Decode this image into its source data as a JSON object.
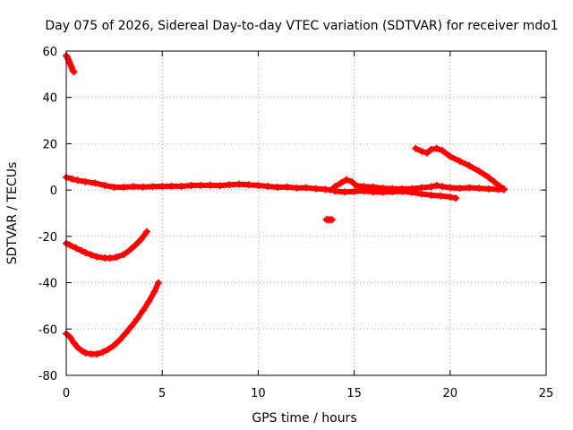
{
  "chart_data": {
    "type": "scatter",
    "title": "Day 075 of 2026, Sidereal Day-to-day VTEC variation (SDTVAR) for receiver mdo1",
    "xlabel": "GPS time / hours",
    "ylabel": "SDTVAR / TECUs",
    "xlim": [
      0,
      25
    ],
    "ylim": [
      -80,
      60
    ],
    "xticks": [
      0,
      5,
      10,
      15,
      20,
      25
    ],
    "yticks": [
      -80,
      -60,
      -40,
      -20,
      0,
      20,
      40,
      60
    ],
    "grid": true,
    "marker_color": "#ff0000",
    "series": [
      {
        "name": "steep-drop-start",
        "points": [
          [
            0.0,
            58
          ],
          [
            0.05,
            57.5
          ],
          [
            0.1,
            56.5
          ],
          [
            0.15,
            55.5
          ],
          [
            0.2,
            54.5
          ],
          [
            0.25,
            53.5
          ],
          [
            0.3,
            52.5
          ],
          [
            0.35,
            51.5
          ],
          [
            0.4,
            51
          ]
        ]
      },
      {
        "name": "near-zero-band",
        "points": [
          [
            0.0,
            5.5
          ],
          [
            0.3,
            4.8
          ],
          [
            0.6,
            4.2
          ],
          [
            1.0,
            3.6
          ],
          [
            1.5,
            3.0
          ],
          [
            2.0,
            2.0
          ],
          [
            2.5,
            1.2
          ],
          [
            3.0,
            1.2
          ],
          [
            3.5,
            1.5
          ],
          [
            4.0,
            1.3
          ],
          [
            4.5,
            1.5
          ],
          [
            5.0,
            1.6
          ],
          [
            5.5,
            1.7
          ],
          [
            6.0,
            1.6
          ],
          [
            6.5,
            2.0
          ],
          [
            7.0,
            2.0
          ],
          [
            7.5,
            2.1
          ],
          [
            8.0,
            1.9
          ],
          [
            8.5,
            2.3
          ],
          [
            9.0,
            2.5
          ],
          [
            9.5,
            2.3
          ],
          [
            10.0,
            2.0
          ],
          [
            10.5,
            1.6
          ],
          [
            11.0,
            1.2
          ],
          [
            11.5,
            1.3
          ],
          [
            12.0,
            0.9
          ],
          [
            12.5,
            1.0
          ],
          [
            13.0,
            0.6
          ],
          [
            13.5,
            0.3
          ],
          [
            13.8,
            0.0
          ],
          [
            14.0,
            1.5
          ],
          [
            14.3,
            3.0
          ],
          [
            14.6,
            4.5
          ],
          [
            14.9,
            3.5
          ],
          [
            15.1,
            2.0
          ],
          [
            15.5,
            1.5
          ],
          [
            16.0,
            1.3
          ],
          [
            16.5,
            0.8
          ],
          [
            17.0,
            0.6
          ],
          [
            17.5,
            0.5
          ],
          [
            18.0,
            0.6
          ],
          [
            18.5,
            1.0
          ],
          [
            19.0,
            1.4
          ],
          [
            19.3,
            2.0
          ],
          [
            19.6,
            1.5
          ],
          [
            20.0,
            1.0
          ],
          [
            20.5,
            0.8
          ],
          [
            21.0,
            1.0
          ],
          [
            21.5,
            0.8
          ],
          [
            22.0,
            0.5
          ],
          [
            22.5,
            0.3
          ],
          [
            22.8,
            0.2
          ]
        ]
      },
      {
        "name": "lower-band-segment",
        "points": [
          [
            14.0,
            -0.5
          ],
          [
            14.5,
            -0.8
          ],
          [
            15.0,
            -0.6
          ],
          [
            15.5,
            -0.4
          ],
          [
            16.0,
            -0.8
          ],
          [
            16.5,
            -0.9
          ],
          [
            17.0,
            -0.7
          ],
          [
            17.5,
            -0.6
          ],
          [
            18.0,
            -1.0
          ],
          [
            18.5,
            -1.7
          ],
          [
            19.0,
            -2.2
          ],
          [
            19.5,
            -2.5
          ],
          [
            20.0,
            -3.0
          ],
          [
            20.3,
            -3.5
          ]
        ]
      },
      {
        "name": "late-descending-arc",
        "points": [
          [
            18.2,
            18.0
          ],
          [
            18.5,
            16.8
          ],
          [
            18.8,
            16.0
          ],
          [
            19.0,
            17.5
          ],
          [
            19.3,
            18.0
          ],
          [
            19.6,
            17.0
          ],
          [
            20.0,
            14.5
          ],
          [
            20.5,
            12.5
          ],
          [
            21.0,
            10.5
          ],
          [
            21.5,
            8.2
          ],
          [
            22.0,
            5.5
          ],
          [
            22.3,
            3.5
          ],
          [
            22.6,
            1.5
          ],
          [
            22.8,
            0.5
          ]
        ]
      },
      {
        "name": "isolated-point",
        "points": [
          [
            13.55,
            -12.8
          ],
          [
            13.65,
            -12.8
          ],
          [
            13.75,
            -12.8
          ],
          [
            13.85,
            -12.8
          ]
        ]
      },
      {
        "name": "arc-minus-20",
        "points": [
          [
            0.0,
            -23
          ],
          [
            0.2,
            -23.8
          ],
          [
            0.5,
            -25
          ],
          [
            0.8,
            -26.2
          ],
          [
            1.0,
            -27
          ],
          [
            1.3,
            -28
          ],
          [
            1.6,
            -28.8
          ],
          [
            2.0,
            -29.3
          ],
          [
            2.3,
            -29.4
          ],
          [
            2.6,
            -29
          ],
          [
            3.0,
            -27.8
          ],
          [
            3.3,
            -26
          ],
          [
            3.6,
            -23.8
          ],
          [
            3.9,
            -21.3
          ],
          [
            4.2,
            -18
          ]
        ]
      },
      {
        "name": "arc-minus-60",
        "points": [
          [
            0.0,
            -62
          ],
          [
            0.2,
            -63.5
          ],
          [
            0.4,
            -66
          ],
          [
            0.6,
            -68
          ],
          [
            0.8,
            -69.3
          ],
          [
            1.0,
            -70.3
          ],
          [
            1.3,
            -70.8
          ],
          [
            1.6,
            -70.8
          ],
          [
            1.9,
            -70
          ],
          [
            2.2,
            -68.7
          ],
          [
            2.5,
            -67
          ],
          [
            2.8,
            -64.6
          ],
          [
            3.1,
            -61.8
          ],
          [
            3.4,
            -58.8
          ],
          [
            3.7,
            -55.6
          ],
          [
            4.0,
            -52
          ],
          [
            4.3,
            -48.2
          ],
          [
            4.6,
            -43.8
          ],
          [
            4.8,
            -40
          ]
        ]
      }
    ]
  }
}
